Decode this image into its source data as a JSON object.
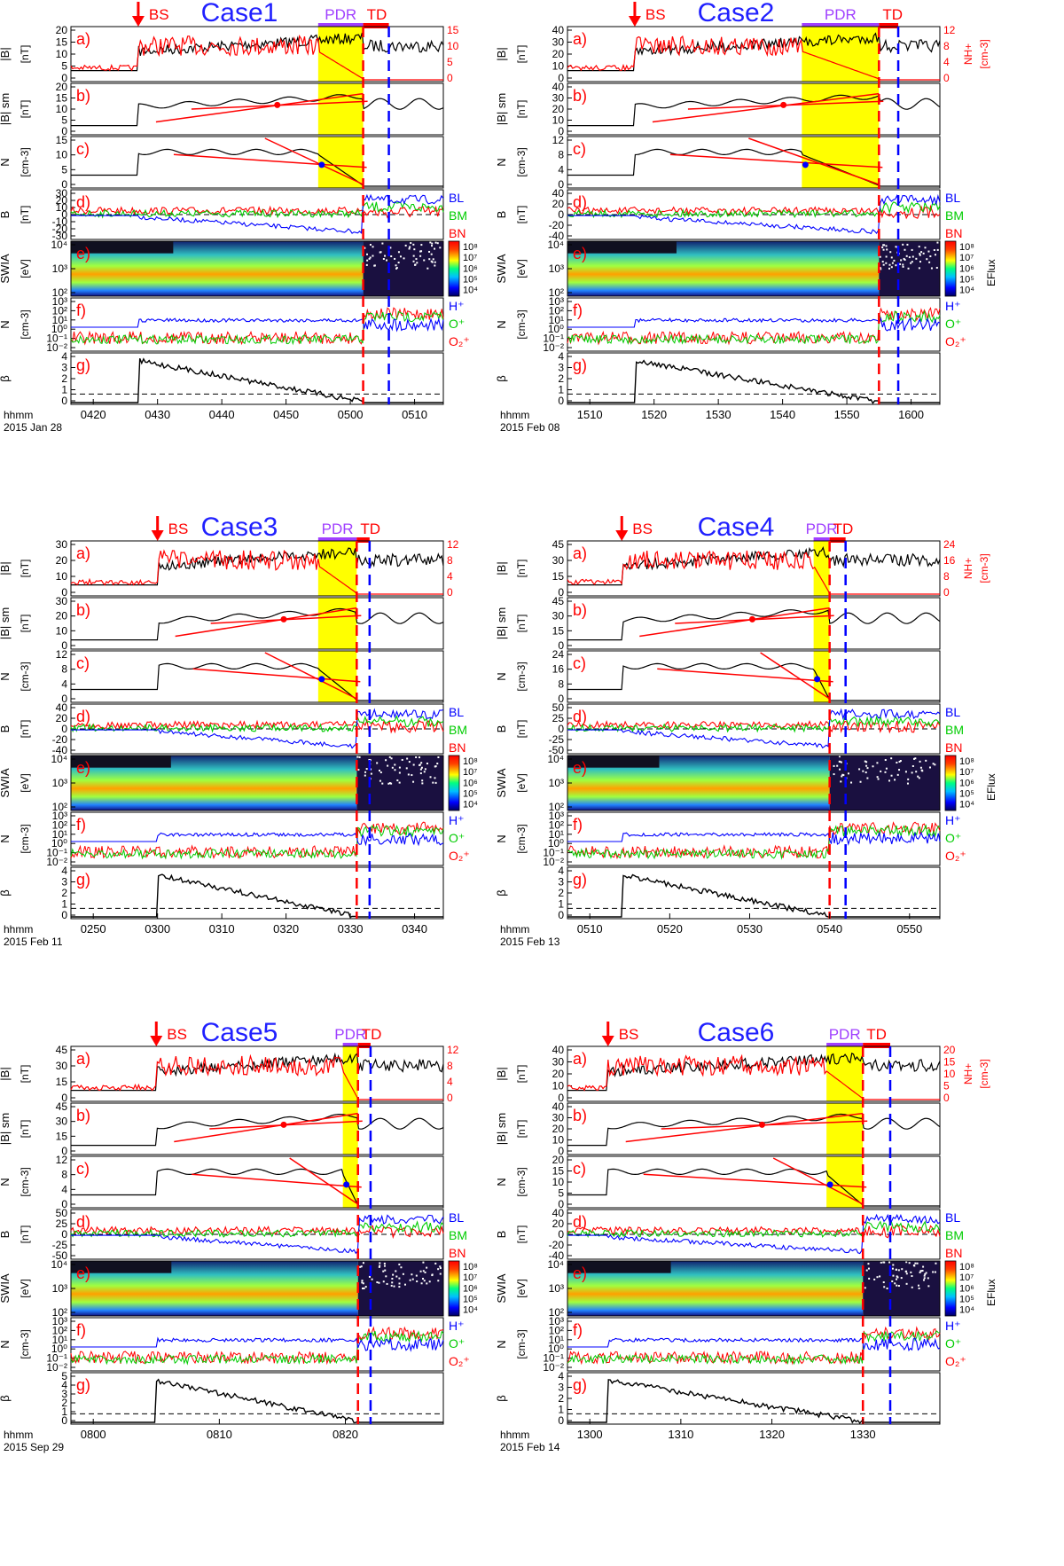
{
  "figure": {
    "panel_letters": [
      "a)",
      "b)",
      "c)",
      "d)",
      "e)",
      "f)",
      "g)"
    ],
    "panel_ylabels": [
      [
        "|B|",
        "[nT]"
      ],
      [
        "|B| sm",
        "[nT]"
      ],
      [
        "N",
        "[cm-3]"
      ],
      [
        "B",
        "[nT]"
      ],
      [
        "SWIA",
        "[eV]"
      ],
      [
        "N",
        "[cm-3]"
      ],
      [
        "β",
        ""
      ]
    ],
    "swia_ticks": [
      "10⁴",
      "10³",
      "10²"
    ],
    "ni_ticks": [
      "10³",
      "10²",
      "10¹",
      "10⁰",
      "10⁻¹",
      "10⁻²"
    ],
    "legend_b": [
      "BL",
      "BM",
      "BN"
    ],
    "legend_ions": [
      "H⁺",
      "O⁺",
      "O₂⁺"
    ],
    "colorbar_ticks": [
      "10⁸",
      "10⁷",
      "10⁶",
      "10⁵",
      "10⁴"
    ],
    "colorbar_label": "EFlux",
    "markers": {
      "bs": "BS",
      "pdr": "PDR",
      "td": "TD"
    },
    "nh_label": "NH+",
    "nh_unit": "[cm-3]",
    "time_label": "hhmm",
    "colors": {
      "black": "#000000",
      "red": "#ff0000",
      "blue": "#0000ff",
      "green": "#00cc00",
      "purple": "#a040ff",
      "yellow": "#ffff00",
      "title_blue": "#2020ff"
    }
  },
  "chart_data": [
    {
      "type": "line",
      "title": "Case1",
      "date": "2015 Jan 28",
      "xticks": [
        "0420",
        "0430",
        "0440",
        "0450",
        "0500",
        "0510"
      ],
      "xlim": [
        415,
        515
      ],
      "xtick_values": [
        420,
        430,
        440,
        450,
        460,
        470
      ],
      "bs": 427,
      "pdr": [
        455,
        462
      ],
      "td": [
        462,
        466
      ],
      "yellow": [
        455,
        462
      ],
      "red_dash": 462,
      "blue_dash": 466,
      "b_ticks": [
        "20",
        "15",
        "10",
        "5",
        "0"
      ],
      "b_max": 20,
      "nh_ticks": [
        "15",
        "10",
        "5",
        "0"
      ],
      "nh_max": 15,
      "bsm_ticks": [
        "20",
        "15",
        "10",
        "5",
        "0"
      ],
      "nsm_ticks": [
        "15",
        "10",
        "5",
        "0"
      ],
      "bv_ticks": [
        "30",
        "20",
        "10",
        "0",
        "-10",
        "-20",
        "-30"
      ],
      "beta_ticks": [
        "4",
        "3",
        "2",
        "1",
        "0"
      ]
    },
    {
      "type": "line",
      "title": "Case2",
      "date": "2015 Feb 08",
      "xticks": [
        "1510",
        "1520",
        "1530",
        "1540",
        "1550",
        "1600"
      ],
      "bs": 1517,
      "pdr": [
        1543,
        1555
      ],
      "td": [
        1555,
        1558
      ],
      "yellow": [
        1543,
        1555
      ],
      "red_dash": 1555,
      "blue_dash": 1558,
      "b_ticks": [
        "40",
        "30",
        "20",
        "10",
        "0"
      ],
      "b_max": 40,
      "nh_ticks": [
        "12",
        "8",
        "4",
        "0"
      ],
      "nh_max": 12,
      "bsm_ticks": [
        "40",
        "30",
        "20",
        "10",
        "0"
      ],
      "nsm_ticks": [
        "12",
        "8",
        "4",
        "0"
      ],
      "bv_ticks": [
        "40",
        "20",
        "0",
        "-20",
        "-40"
      ],
      "beta_ticks": [
        "4",
        "3",
        "2",
        "1",
        "0"
      ]
    },
    {
      "type": "line",
      "title": "Case3",
      "date": "2015 Feb 11",
      "xticks": [
        "0250",
        "0300",
        "0310",
        "0320",
        "0330",
        "0340"
      ],
      "bs": 300,
      "pdr": [
        325,
        331
      ],
      "td": [
        331,
        333
      ],
      "yellow": [
        325,
        331
      ],
      "red_dash": 331,
      "blue_dash": 333,
      "b_ticks": [
        "30",
        "20",
        "10",
        "0"
      ],
      "b_max": 30,
      "nh_ticks": [
        "12",
        "8",
        "4",
        "0"
      ],
      "nh_max": 12,
      "bsm_ticks": [
        "30",
        "20",
        "10",
        "0"
      ],
      "nsm_ticks": [
        "12",
        "8",
        "4",
        "0"
      ],
      "bv_ticks": [
        "40",
        "20",
        "0",
        "-20",
        "-40"
      ],
      "beta_ticks": [
        "4",
        "3",
        "2",
        "1",
        "0"
      ]
    },
    {
      "type": "line",
      "title": "Case4",
      "date": "2015 Feb 13",
      "xticks": [
        "0510",
        "0520",
        "0530",
        "0540",
        "0550"
      ],
      "bs": 514,
      "pdr": [
        538,
        540
      ],
      "td": [
        540,
        542
      ],
      "yellow": [
        538,
        540
      ],
      "red_dash": 540,
      "blue_dash": 542,
      "b_ticks": [
        "45",
        "30",
        "15",
        "0"
      ],
      "b_max": 45,
      "nh_ticks": [
        "24",
        "16",
        "8",
        "0"
      ],
      "nh_max": 24,
      "bsm_ticks": [
        "45",
        "30",
        "15",
        "0"
      ],
      "nsm_ticks": [
        "24",
        "16",
        "8",
        "0"
      ],
      "bv_ticks": [
        "50",
        "25",
        "0",
        "-25",
        "-50"
      ],
      "beta_ticks": [
        "4",
        "3",
        "2",
        "1",
        "0"
      ]
    },
    {
      "type": "line",
      "title": "Case5",
      "date": "2015 Sep 29",
      "xticks": [
        "0800",
        "0810",
        "0820"
      ],
      "bs": 805,
      "pdr": [
        819.8,
        821
      ],
      "td": [
        821,
        822
      ],
      "yellow": [
        819.8,
        821
      ],
      "red_dash": 821,
      "blue_dash": 822,
      "b_ticks": [
        "45",
        "30",
        "15",
        "0"
      ],
      "b_max": 45,
      "nh_ticks": [
        "12",
        "8",
        "4",
        "0"
      ],
      "nh_max": 12,
      "bsm_ticks": [
        "45",
        "30",
        "15",
        "0"
      ],
      "nsm_ticks": [
        "12",
        "8",
        "4",
        "0"
      ],
      "bv_ticks": [
        "50",
        "25",
        "0",
        "-25",
        "-50"
      ],
      "beta_ticks": [
        "5",
        "4",
        "3",
        "2",
        "1",
        "0"
      ]
    },
    {
      "type": "line",
      "title": "Case6",
      "date": "2015 Feb 14",
      "xticks": [
        "1300",
        "1310",
        "1320",
        "1330"
      ],
      "bs": 1302,
      "pdr": [
        1326,
        1330
      ],
      "td": [
        1330,
        1333
      ],
      "yellow": [
        1326,
        1330
      ],
      "red_dash": 1330,
      "blue_dash": 1333,
      "b_ticks": [
        "40",
        "30",
        "20",
        "10",
        "0"
      ],
      "b_max": 40,
      "nh_ticks": [
        "20",
        "15",
        "10",
        "5",
        "0"
      ],
      "nh_max": 20,
      "bsm_ticks": [
        "40",
        "30",
        "20",
        "10",
        "0"
      ],
      "nsm_ticks": [
        "20",
        "15",
        "10",
        "5",
        "0"
      ],
      "bv_ticks": [
        "40",
        "20",
        "0",
        "-20",
        "-40"
      ],
      "beta_ticks": [
        "4",
        "3",
        "2",
        "1",
        "0"
      ]
    }
  ]
}
